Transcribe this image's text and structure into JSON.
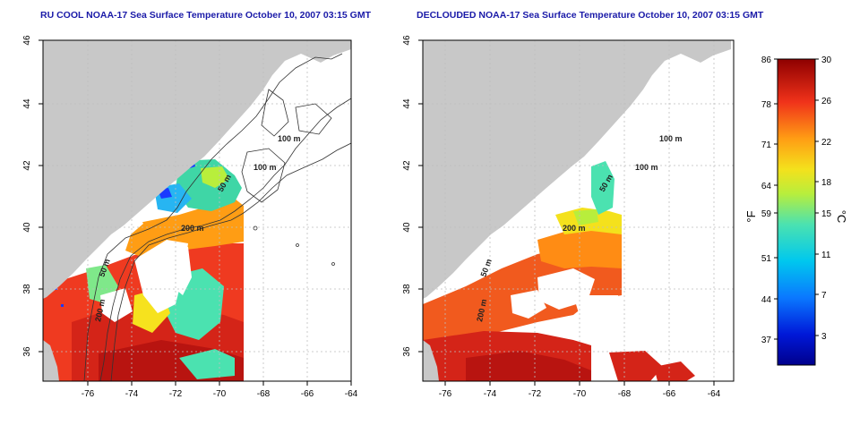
{
  "titles": {
    "left": "RU COOL NOAA-17 Sea Surface Temperature October 10, 2007 03:15 GMT",
    "right": "DECLOUDED NOAA-17 Sea Surface Temperature October 10, 2007 03:15 GMT"
  },
  "axes": {
    "x_ticks": [
      "-76",
      "-74",
      "-72",
      "-70",
      "-68",
      "-66",
      "-64"
    ],
    "y_ticks": [
      "46",
      "44",
      "42",
      "40",
      "38",
      "36"
    ]
  },
  "contours": {
    "left": [
      "100 m",
      "100 m",
      "50 m",
      "200 m",
      "50 m",
      "200 m"
    ],
    "right": [
      "100 m",
      "100 m",
      "50 m",
      "200 m",
      "50 m",
      "200 m"
    ]
  },
  "colorbar": {
    "f_unit": "°F",
    "c_unit": "°C",
    "f_labels": [
      "86",
      "78",
      "71",
      "64",
      "59",
      "51",
      "44",
      "37"
    ],
    "c_labels": [
      "30",
      "26",
      "22",
      "18",
      "15",
      "11",
      "7",
      "3"
    ]
  },
  "colors": {
    "land": "#c8c8c8",
    "no_data": "#ffffff",
    "title": "#1a1aa8"
  }
}
